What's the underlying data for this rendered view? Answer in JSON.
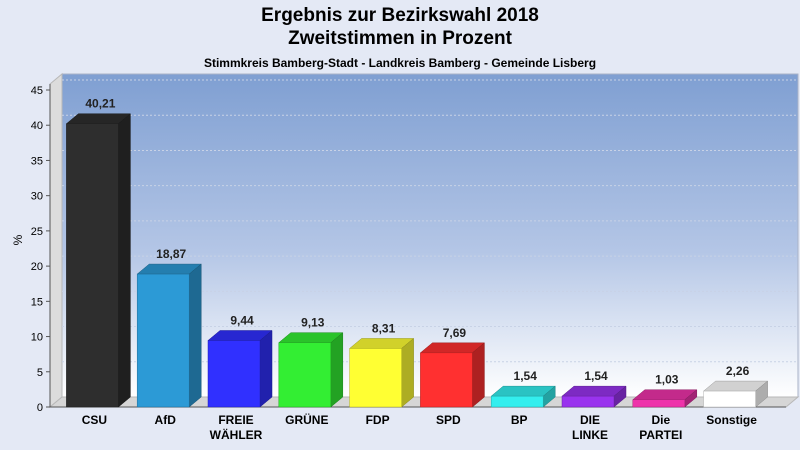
{
  "title_line1": "Ergebnis zur Bezirkswahl 2018",
  "title_line2": "Zweitstimmen in Prozent",
  "subtitle": "Stimmkreis Bamberg-Stadt - Landkreis Bamberg - Gemeinde Lisberg",
  "chart_data": {
    "type": "bar",
    "ylabel": "%",
    "ylim": [
      0,
      45
    ],
    "yticks": [
      0,
      5,
      10,
      15,
      20,
      25,
      30,
      35,
      40,
      45
    ],
    "grid": true,
    "categories": [
      [
        "CSU"
      ],
      [
        "AfD"
      ],
      [
        "FREIE",
        "WÄHLER"
      ],
      [
        "GRÜNE"
      ],
      [
        "FDP"
      ],
      [
        "SPD"
      ],
      [
        "BP"
      ],
      [
        "DIE",
        "LINKE"
      ],
      [
        "Die",
        "PARTEI"
      ],
      [
        "Sonstige"
      ]
    ],
    "values": [
      40.21,
      18.87,
      9.44,
      9.13,
      8.31,
      7.69,
      1.54,
      1.54,
      1.03,
      2.26
    ],
    "value_labels": [
      "40,21",
      "18,87",
      "9,44",
      "9,13",
      "8,31",
      "7,69",
      "1,54",
      "1,54",
      "1,03",
      "2,26"
    ],
    "colors": [
      "#2e2e2e",
      "#2c9ad6",
      "#3030ff",
      "#33ee33",
      "#ffff33",
      "#ff3030",
      "#33eeee",
      "#9933ee",
      "#ee33aa",
      "#ffffff"
    ]
  }
}
